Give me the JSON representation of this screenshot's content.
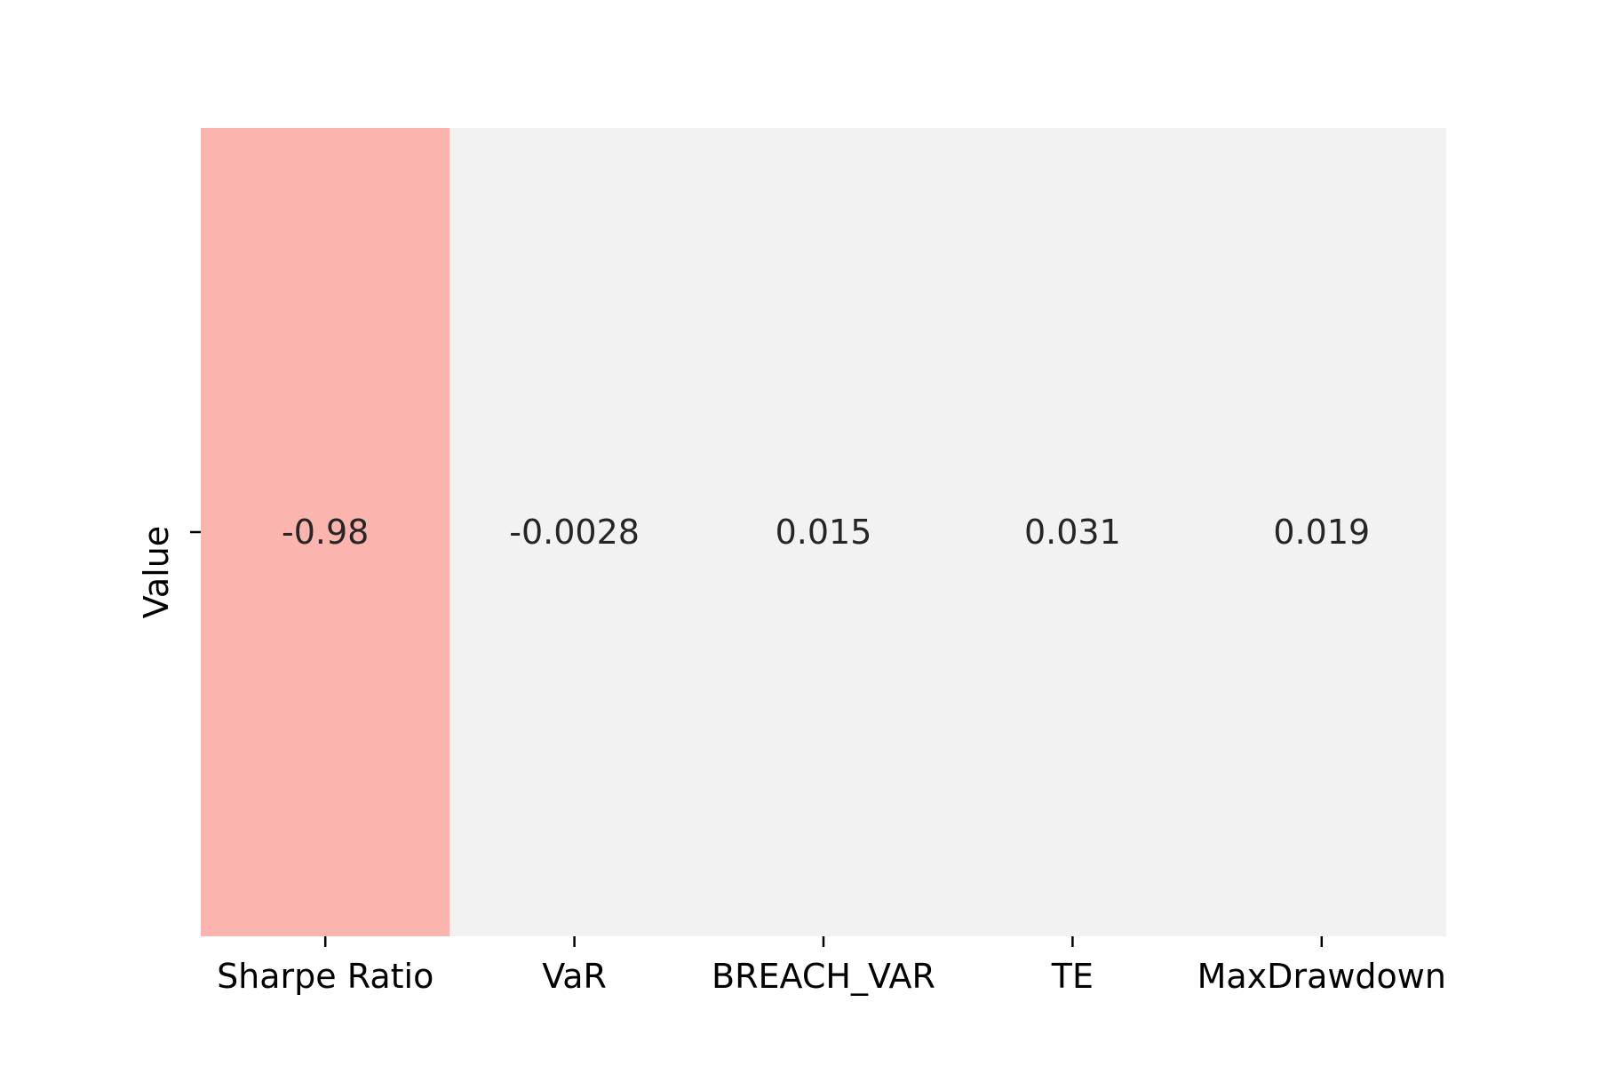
{
  "chart_data": {
    "type": "heatmap",
    "title": "",
    "xlabel": "",
    "ylabel": "",
    "rows": [
      "Value"
    ],
    "columns": [
      "Sharpe Ratio",
      "VaR",
      "BREACH_VAR",
      "TE",
      "MaxDrawdown"
    ],
    "values": [
      [
        -0.98,
        -0.0028,
        0.015,
        0.031,
        0.019
      ]
    ],
    "labels": [
      [
        "-0.98",
        "-0.0028",
        "0.015",
        "0.031",
        "0.019"
      ]
    ],
    "colorbar": false,
    "colors": {
      "negative": "#fbb4ae",
      "neutral": "#f2f2f2",
      "text": "#262626"
    }
  }
}
